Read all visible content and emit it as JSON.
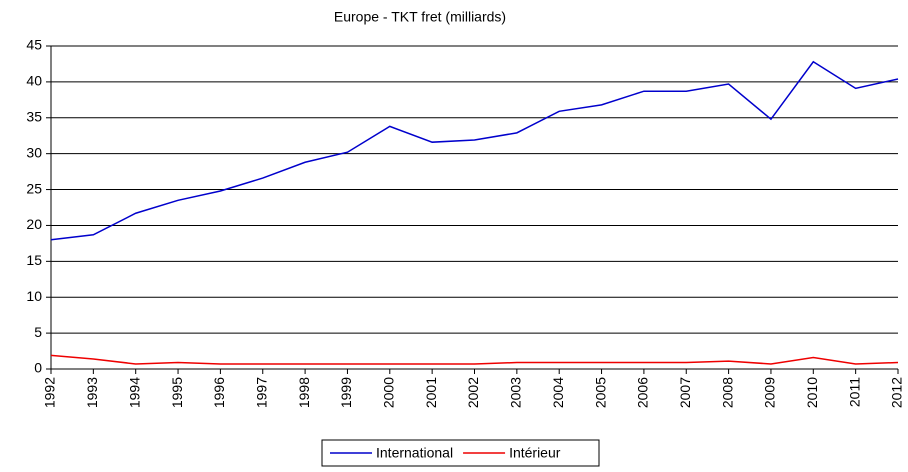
{
  "chart_data": {
    "type": "line",
    "title": "Europe - TKT fret (milliards)",
    "categories": [
      "1992",
      "1993",
      "1994",
      "1995",
      "1996",
      "1997",
      "1998",
      "1999",
      "2000",
      "2001",
      "2002",
      "2003",
      "2004",
      "2005",
      "2006",
      "2007",
      "2008",
      "2009",
      "2010",
      "2011",
      "2012"
    ],
    "series": [
      {
        "name": "International",
        "color": "#0000cc",
        "values": [
          18.0,
          18.7,
          21.7,
          23.5,
          24.8,
          26.6,
          28.8,
          30.2,
          33.8,
          31.6,
          31.9,
          32.9,
          35.9,
          36.8,
          38.7,
          38.7,
          39.7,
          34.8,
          42.8,
          39.1,
          40.4
        ]
      },
      {
        "name": "Intérieur",
        "color": "#ee0000",
        "values": [
          1.9,
          1.4,
          0.7,
          0.9,
          0.7,
          0.7,
          0.7,
          0.7,
          0.7,
          0.7,
          0.7,
          0.9,
          0.9,
          0.9,
          0.9,
          0.9,
          1.1,
          0.7,
          1.6,
          0.7,
          0.9
        ]
      }
    ],
    "ylim": [
      0,
      45
    ],
    "yticks": [
      0,
      5,
      10,
      15,
      20,
      25,
      30,
      35,
      40,
      45
    ],
    "grid": true,
    "legend": "bottom"
  }
}
